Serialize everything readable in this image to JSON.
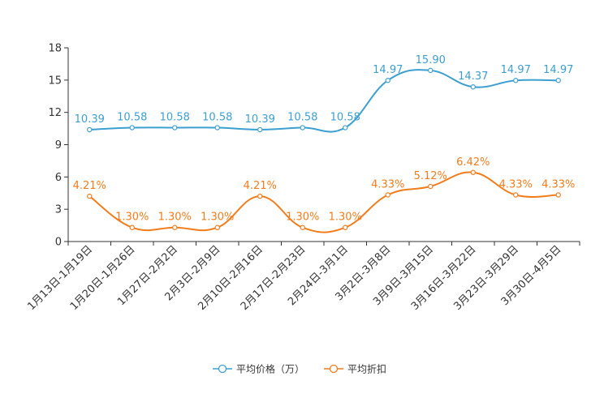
{
  "chart_data": {
    "type": "line",
    "title": "",
    "xlabel": "",
    "ylabel": "",
    "ylim": [
      0,
      18
    ],
    "yticks": [
      0,
      3,
      6,
      9,
      12,
      15,
      18
    ],
    "grid": false,
    "legend_position": "bottom-center",
    "categories": [
      "1月13日-1月19日",
      "1月20日-1月26日",
      "1月27日-2月2日",
      "2月3日-2月9日",
      "2月10日-2月16日",
      "2月17日-2月23日",
      "2月24日-3月1日",
      "3月2日-3月8日",
      "3月9日-3月15日",
      "3月16日-3月22日",
      "3月23日-3月29日",
      "3月30日-4月5日"
    ],
    "series": [
      {
        "name": "平均价格（万）",
        "color": "#3c9fd0",
        "values": [
          10.39,
          10.58,
          10.58,
          10.58,
          10.39,
          10.58,
          10.58,
          14.97,
          15.9,
          14.37,
          14.97,
          14.97
        ],
        "labels": [
          "10.39",
          "10.58",
          "10.58",
          "10.58",
          "10.39",
          "10.58",
          "10.58",
          "14.97",
          "15.90",
          "14.37",
          "14.97",
          "14.97"
        ]
      },
      {
        "name": "平均折扣",
        "color": "#f07c1c",
        "values": [
          4.21,
          1.3,
          1.3,
          1.3,
          4.21,
          1.3,
          1.3,
          4.33,
          5.12,
          6.42,
          4.33,
          4.33
        ],
        "labels": [
          "4.21%",
          "1.30%",
          "1.30%",
          "1.30%",
          "4.21%",
          "1.30%",
          "1.30%",
          "4.33%",
          "5.12%",
          "6.42%",
          "4.33%",
          "4.33%"
        ]
      }
    ]
  }
}
